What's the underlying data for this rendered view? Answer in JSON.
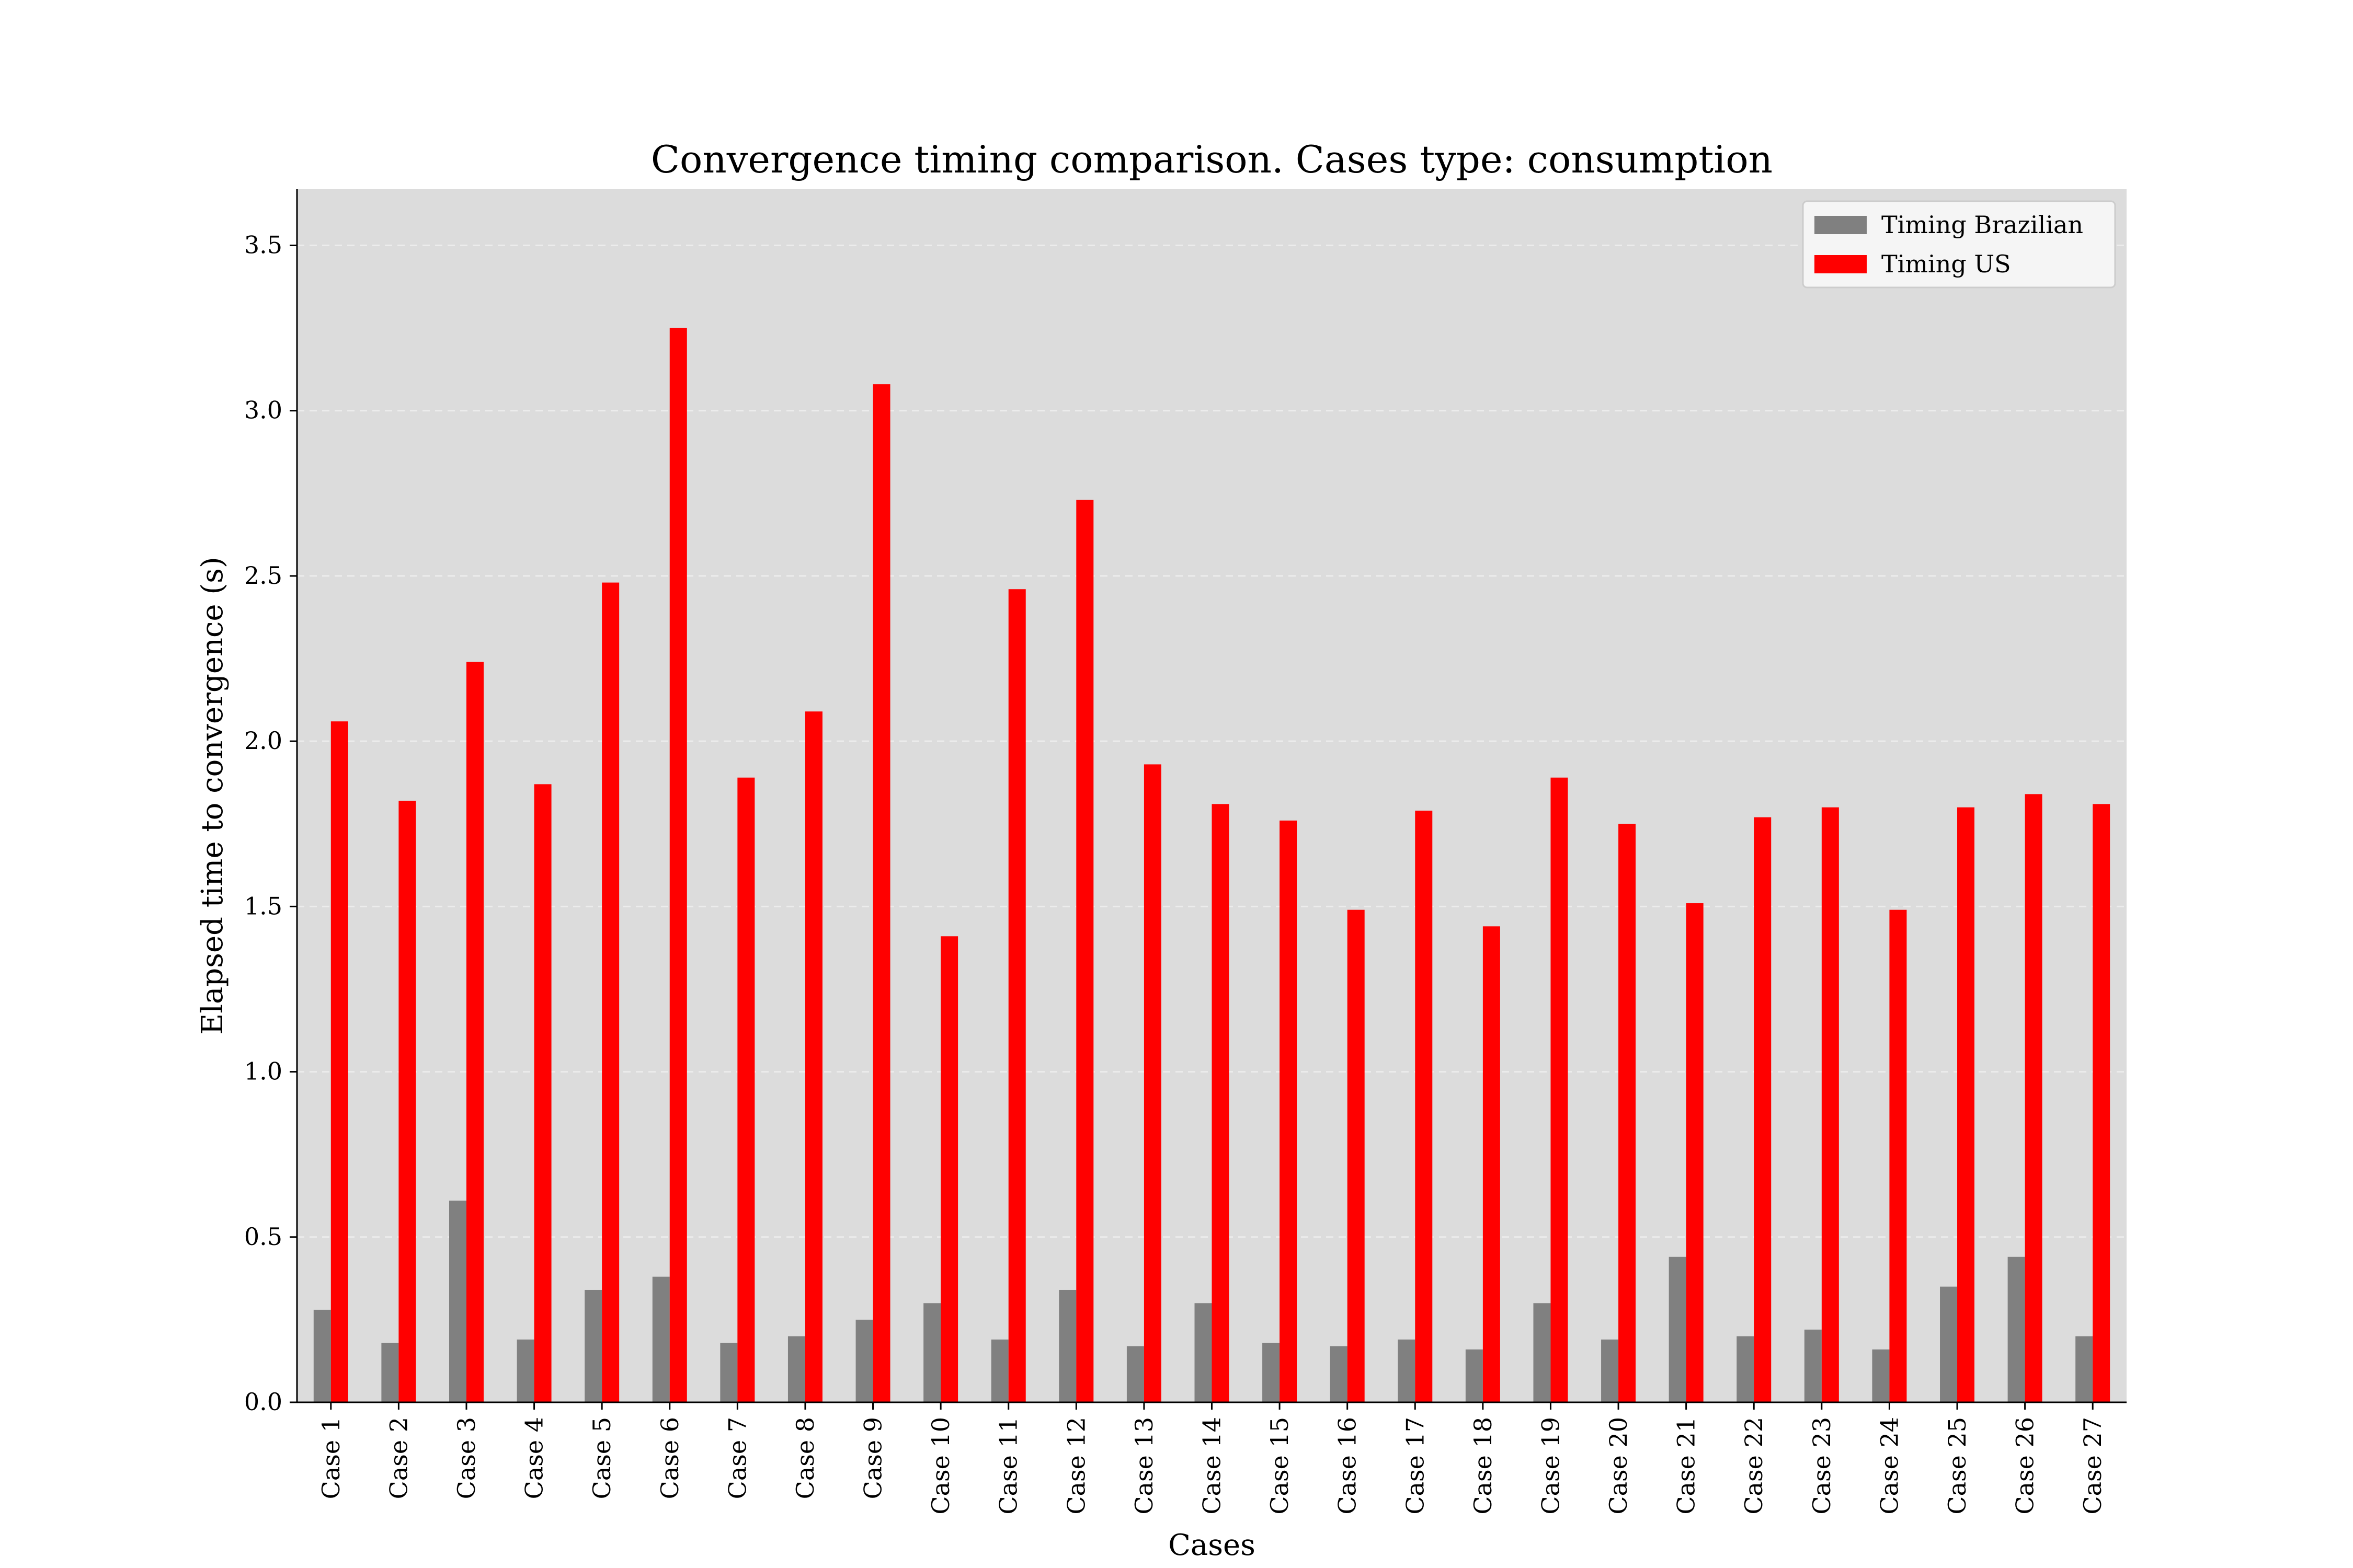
{
  "chart_data": {
    "type": "bar",
    "title": "Convergence timing comparison. Cases type: consumption",
    "xlabel": "Cases",
    "ylabel": "Elapsed time to convergence (s)",
    "ylim": [
      0,
      3.67
    ],
    "yticks": [
      "0.0",
      "0.5",
      "1.0",
      "1.5",
      "2.0",
      "2.5",
      "3.0",
      "3.5"
    ],
    "grid": "horizontal dashed",
    "legend_position": "top-right",
    "colors": {
      "plot_background": "#dcdcdc",
      "Timing Brazilian": "#808080",
      "Timing US": "#ff0000"
    },
    "categories": [
      "Case 1",
      "Case 2",
      "Case 3",
      "Case 4",
      "Case 5",
      "Case 6",
      "Case 7",
      "Case 8",
      "Case 9",
      "Case 10",
      "Case 11",
      "Case 12",
      "Case 13",
      "Case 14",
      "Case 15",
      "Case 16",
      "Case 17",
      "Case 18",
      "Case 19",
      "Case 20",
      "Case 21",
      "Case 22",
      "Case 23",
      "Case 24",
      "Case 25",
      "Case 26",
      "Case 27"
    ],
    "series": [
      {
        "name": "Timing Brazilian",
        "values": [
          0.28,
          0.18,
          0.61,
          0.19,
          0.34,
          0.38,
          0.18,
          0.2,
          0.25,
          0.3,
          0.19,
          0.34,
          0.17,
          0.3,
          0.18,
          0.17,
          0.19,
          0.16,
          0.3,
          0.19,
          0.44,
          0.2,
          0.22,
          0.16,
          0.35,
          0.44,
          0.2
        ]
      },
      {
        "name": "Timing US",
        "values": [
          2.06,
          1.82,
          2.24,
          1.87,
          2.48,
          3.25,
          1.89,
          2.09,
          3.08,
          1.41,
          2.46,
          2.73,
          1.93,
          1.81,
          1.76,
          1.49,
          1.79,
          1.44,
          1.89,
          1.75,
          1.51,
          1.77,
          1.8,
          1.49,
          1.8,
          1.84,
          1.81
        ]
      }
    ]
  }
}
